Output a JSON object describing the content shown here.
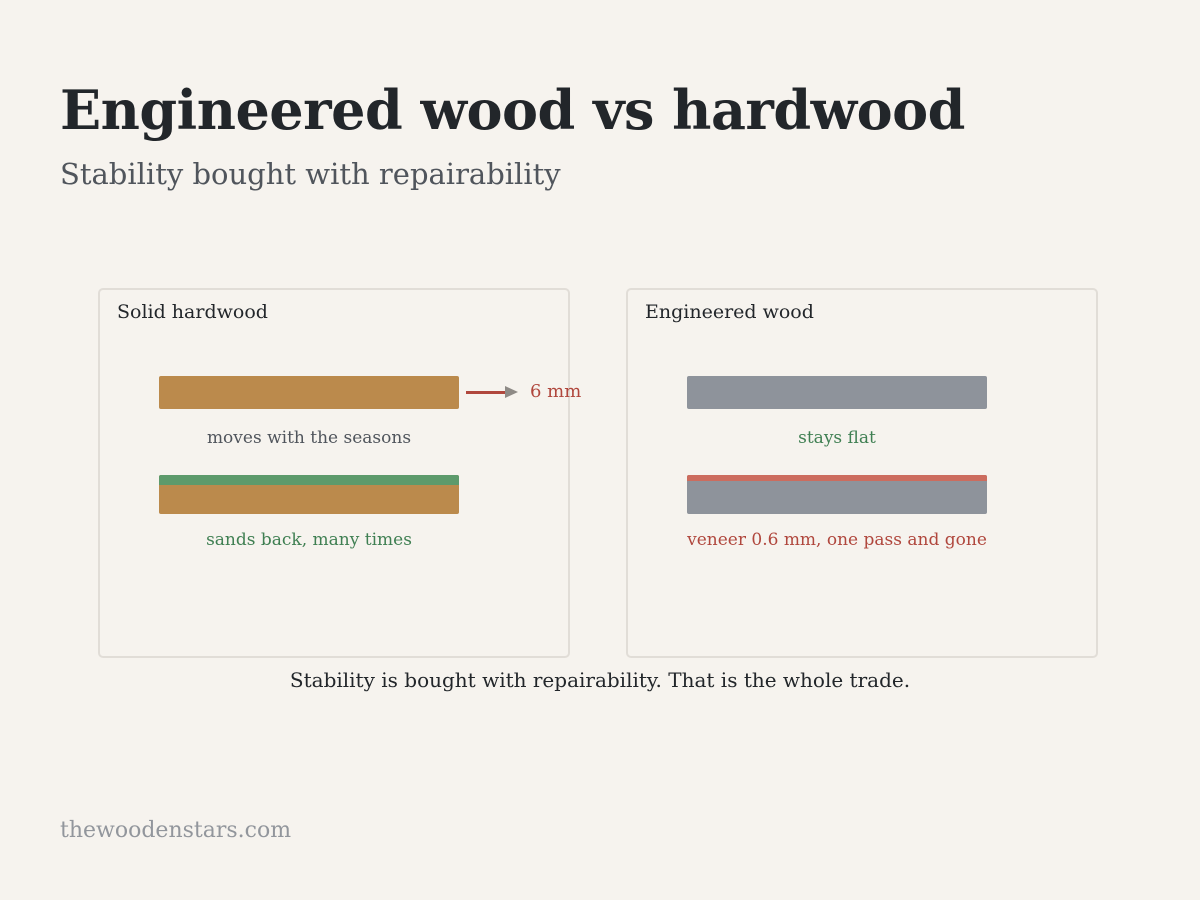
{
  "header": {
    "title": "Engineered wood vs hardwood",
    "subtitle": "Stability bought with repairability"
  },
  "panels": [
    {
      "title": "Solid hardwood",
      "top_caption": "moves with the seasons",
      "movement_label": "6 mm",
      "bottom_caption": "sands back, many times"
    },
    {
      "title": "Engineered wood",
      "top_caption": "stays flat",
      "bottom_caption": "veneer 0.6 mm, one pass and gone"
    }
  ],
  "conclusion": "Stability is bought with repairability. That is the whole trade.",
  "footer": {
    "site": "thewoodenstars.com"
  },
  "colors": {
    "background": "#f6f3ee",
    "hardwood": "#bb8a4c",
    "engineered": "#8e939b",
    "positive": "#3f7f52",
    "negative": "#b0473d",
    "sanding_layer": "#5d9a6b",
    "veneer_layer": "#cc6c5e"
  }
}
